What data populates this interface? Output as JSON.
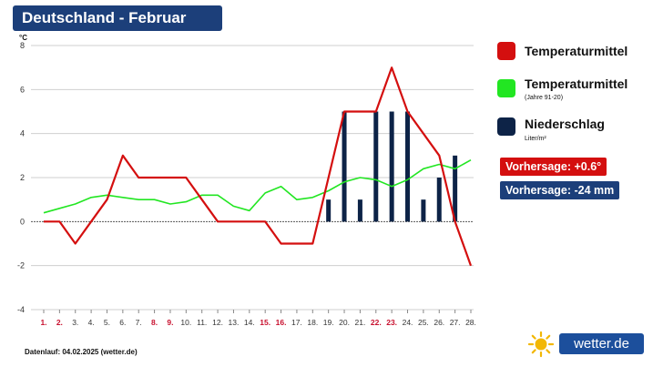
{
  "title": "Deutschland - Februar",
  "footer": "Datenlauf: 04.02.2025 (wetter.de)",
  "logo_text": "wetter.de",
  "legend": {
    "temp": {
      "label": "Temperaturmittel",
      "color": "#d40f0f"
    },
    "normal": {
      "label": "Temperaturmittel",
      "sub": "(Jahre 91-20)",
      "color": "#22e622"
    },
    "precip": {
      "label": "Niederschlag",
      "sub": "Liter/m²",
      "color": "#0d2347"
    }
  },
  "forecast": {
    "temp": {
      "label": "Vorhersage: +0.6°",
      "color": "#d40f0f"
    },
    "precip": {
      "label": "Vorhersage: -24 mm",
      "color": "#1c3f7a"
    }
  },
  "chart_data": {
    "type": "line",
    "ylabel": "°C",
    "ylim": [
      -4,
      8
    ],
    "yticks": [
      8,
      6,
      4,
      2,
      0,
      -2,
      -4
    ],
    "grid": true,
    "legend_position": "right",
    "categories": [
      "1.",
      "2.",
      "3.",
      "4.",
      "5.",
      "6.",
      "7.",
      "8.",
      "9.",
      "10.",
      "11.",
      "12.",
      "13.",
      "14.",
      "15.",
      "16.",
      "17.",
      "18.",
      "19.",
      "20.",
      "21.",
      "22.",
      "23.",
      "24.",
      "25.",
      "26.",
      "27.",
      "28."
    ],
    "weekend_days": [
      "1.",
      "2.",
      "8.",
      "9.",
      "15.",
      "16.",
      "22.",
      "23."
    ],
    "weekend_color": "#c8102e",
    "series": [
      {
        "name": "Temperaturmittel",
        "type": "line",
        "color": "#d40f0f",
        "values": [
          0,
          0,
          -1,
          0,
          1,
          3,
          2,
          2,
          2,
          2,
          1,
          0,
          0,
          0,
          0,
          -1,
          -1,
          -1,
          2,
          5,
          5,
          5,
          7,
          5,
          4,
          3,
          0,
          -2
        ]
      },
      {
        "name": "Temperaturmittel (Jahre 91-20)",
        "type": "line",
        "color": "#22e622",
        "values": [
          0.4,
          0.6,
          0.8,
          1.1,
          1.2,
          1.1,
          1.0,
          1.0,
          0.8,
          0.9,
          1.2,
          1.2,
          0.7,
          0.5,
          1.3,
          1.6,
          1.0,
          1.1,
          1.4,
          1.8,
          2.0,
          1.9,
          1.6,
          1.9,
          2.4,
          2.6,
          2.4,
          2.8
        ]
      },
      {
        "name": "Niederschlag",
        "type": "bar",
        "color": "#0d2347",
        "values": [
          0,
          0,
          0,
          0,
          0,
          0,
          0,
          0,
          0,
          0,
          0,
          0,
          0,
          0,
          0,
          0,
          0,
          0,
          1,
          5,
          1,
          5,
          5,
          5,
          1,
          2,
          3,
          0
        ]
      }
    ]
  }
}
